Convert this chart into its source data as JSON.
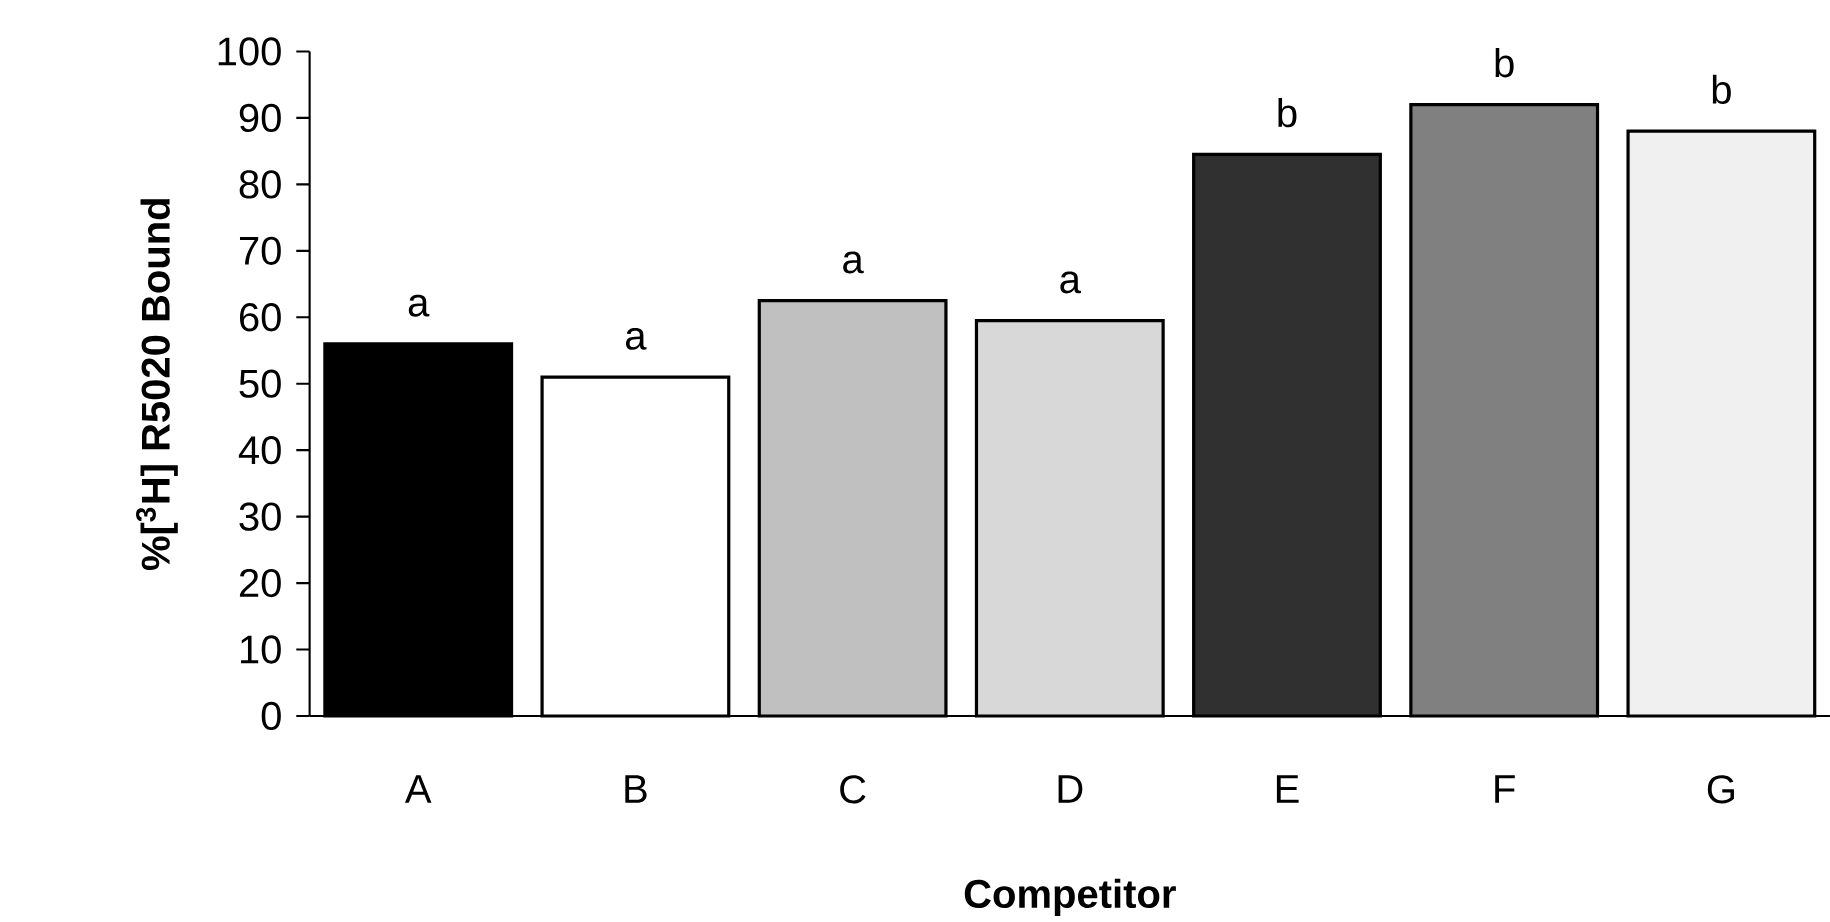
{
  "chart_data": {
    "type": "bar",
    "xlabel": "Competitor",
    "ylabel": "%[$^{3}$H] R5020 Bound",
    "categories": [
      "A",
      "B",
      "C",
      "D",
      "E",
      "F",
      "G"
    ],
    "values": [
      56,
      51,
      62.5,
      59.5,
      84.5,
      92,
      88
    ],
    "colors": [
      "#000000",
      "#ffffff",
      "#c0c0c0",
      "#d8d8d8",
      "#303030",
      "#808080",
      "#f0f0f0"
    ],
    "ylim": [
      0,
      100
    ],
    "yticks": [
      0,
      10,
      20,
      30,
      40,
      50,
      60,
      70,
      80,
      90,
      100
    ],
    "grid": false,
    "annotations": [
      {
        "text": "a",
        "x": "A",
        "y": 56
      },
      {
        "text": "a",
        "x": "B",
        "y": 51
      },
      {
        "text": "a",
        "x": "C",
        "y": 62.5
      },
      {
        "text": "a",
        "x": "D",
        "y": 59.5
      },
      {
        "text": "b",
        "x": "E",
        "y": 84.5
      },
      {
        "text": "b",
        "x": "F",
        "y": 92
      },
      {
        "text": "b",
        "x": "G",
        "y": 88
      }
    ]
  }
}
